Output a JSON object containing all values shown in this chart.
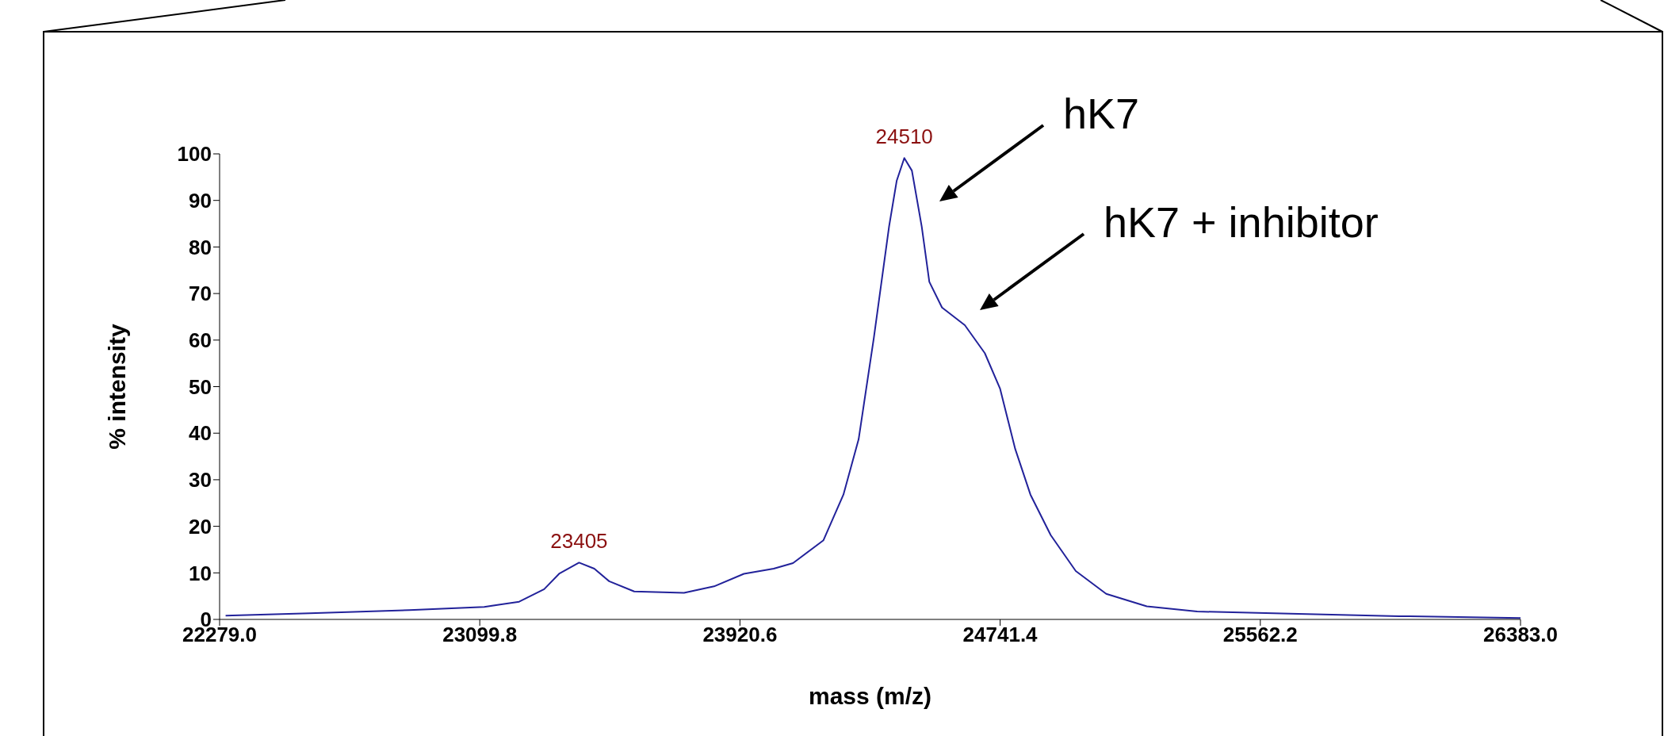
{
  "chart_data": {
    "type": "line",
    "xlabel": "mass (m/z)",
    "ylabel": "% intensity",
    "xlim": [
      22279,
      26383
    ],
    "xticks": [
      {
        "value": 22279,
        "label": "22279.0"
      },
      {
        "value": 23099.8,
        "label": "23099.8"
      },
      {
        "value": 23920.6,
        "label": "23920.6"
      },
      {
        "value": 24741.4,
        "label": "24741.4"
      },
      {
        "value": 25562.2,
        "label": "25562.2"
      },
      {
        "value": 26383,
        "label": "26383.0"
      }
    ],
    "ylim": [
      0,
      100
    ],
    "yticks": [
      0,
      10,
      20,
      30,
      40,
      50,
      60,
      70,
      80,
      90,
      100
    ],
    "grid": false,
    "legend": false,
    "marker": "none",
    "line_style": "solid",
    "series": [
      {
        "color": "#22229a",
        "x": [
          22298,
          22563,
          22878,
          23114,
          23224,
          23303,
          23350,
          23413,
          23461,
          23508,
          23587,
          23744,
          23839,
          23933,
          24027,
          24088,
          24184,
          24247,
          24295,
          24343,
          24391,
          24415,
          24439,
          24463,
          24494,
          24518,
          24558,
          24630,
          24693,
          24741,
          24789,
          24837,
          24901,
          24980,
          25076,
          25204,
          25363,
          25682,
          26000,
          26383
        ],
        "values": [
          0.8,
          1.3,
          2.0,
          2.7,
          3.8,
          6.5,
          9.8,
          12.2,
          10.9,
          8.2,
          6.0,
          5.7,
          7.1,
          9.8,
          10.9,
          12.1,
          17.0,
          26.8,
          38.7,
          60.5,
          84.4,
          94.2,
          99.1,
          96.4,
          84.4,
          72.5,
          67.0,
          63.2,
          57.2,
          49.6,
          36.6,
          26.8,
          18.1,
          10.4,
          5.5,
          2.8,
          1.7,
          1.2,
          0.7,
          0.3
        ]
      }
    ],
    "annotations": [
      {
        "text": "23405",
        "x": 23413,
        "y": 12.2
      },
      {
        "text": "24510",
        "x": 24439,
        "y": 99.1
      },
      "hK7",
      "hK7 + inhibitor"
    ]
  }
}
